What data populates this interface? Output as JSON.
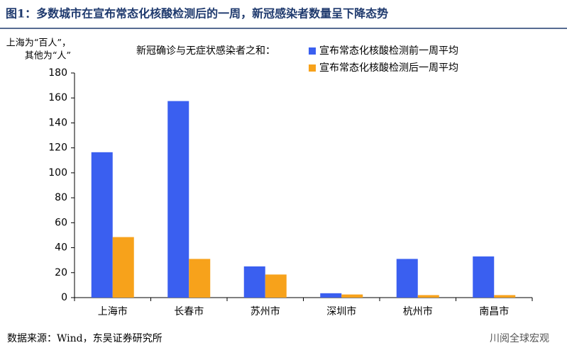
{
  "chart_data": {
    "type": "bar",
    "title": "图1：多数城市在宣布常态化核酸检测后的一周，新冠感染者数量呈下降态势",
    "y_label": [
      "上海为“百人”，",
      "其他为“人”"
    ],
    "legend_title": "新冠确诊与无症状感染者之和：",
    "categories": [
      "上海市",
      "长春市",
      "苏州市",
      "深圳市",
      "杭州市",
      "南昌市"
    ],
    "series": [
      {
        "name": "宣布常态化核酸检测前一周平均",
        "color": "#3a5ff0",
        "values": [
          116.5,
          157.5,
          25,
          3.5,
          31,
          33
        ]
      },
      {
        "name": "宣布常态化核酸检测后一周平均",
        "color": "#f7a21b",
        "values": [
          48.5,
          31,
          18.5,
          2.5,
          2,
          2
        ]
      }
    ],
    "ylim": [
      0,
      180
    ],
    "yticks": [
      0,
      20,
      40,
      60,
      80,
      100,
      120,
      140,
      160,
      180
    ],
    "source": "数据来源：Wind，东吴证券研究所",
    "watermark": "川阅全球宏观"
  }
}
